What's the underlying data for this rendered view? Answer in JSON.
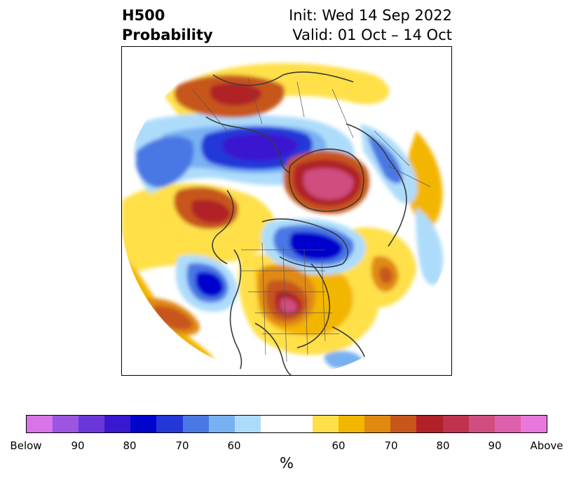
{
  "header": {
    "title_line1": "H500",
    "title_line2": "Probability",
    "init": "Init: Wed 14 Sep 2022",
    "valid": "Valid: 01 Oct – 14 Oct"
  },
  "colorbar": {
    "colors": [
      "#d873e8",
      "#9b55e0",
      "#6a38d8",
      "#3a18d0",
      "#0005cc",
      "#2438d8",
      "#4a78e4",
      "#78b1f2",
      "#addcfb",
      "#ffffff",
      "#ffe04a",
      "#f3b600",
      "#e08a12",
      "#c7561b",
      "#b02228",
      "#c0334e",
      "#cf4d7f",
      "#dd60ab",
      "#e878dc"
    ],
    "tick_labels": [
      "Below",
      "90",
      "80",
      "70",
      "60",
      "60",
      "70",
      "80",
      "90",
      "Above"
    ],
    "unit": "%"
  },
  "map": {
    "projection": "north-polar-stereographic",
    "variable": "500 hPa height probability"
  }
}
